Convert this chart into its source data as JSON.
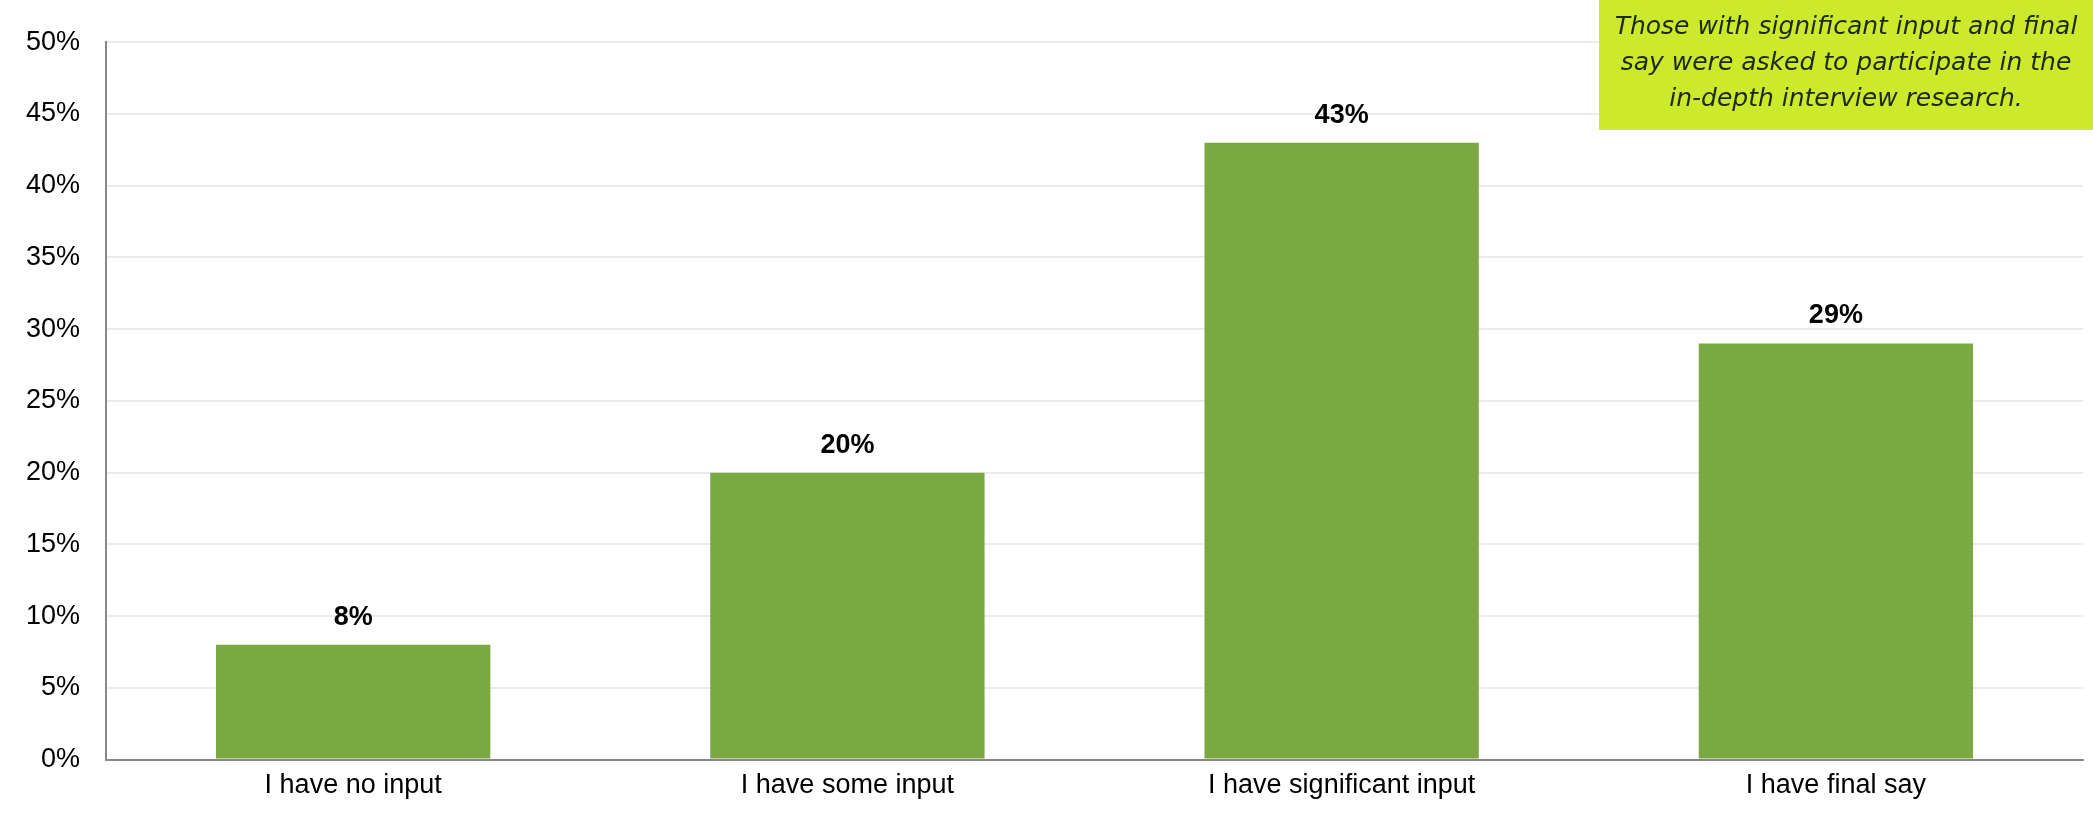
{
  "chart_data": {
    "type": "bar",
    "categories": [
      "I have no input",
      "I have some input",
      "I have significant input",
      "I have final say"
    ],
    "values": [
      8,
      20,
      43,
      29
    ],
    "color": "#7aa843",
    "value_labels": [
      "8%",
      "20%",
      "43%",
      "29%"
    ],
    "ylim": [
      0,
      50
    ],
    "yticks": [
      {
        "value": 0,
        "label": "0%"
      },
      {
        "value": 5,
        "label": "5%"
      },
      {
        "value": 10,
        "label": "10%"
      },
      {
        "value": 15,
        "label": "15%"
      },
      {
        "value": 20,
        "label": "20%"
      },
      {
        "value": 25,
        "label": "25%"
      },
      {
        "value": 30,
        "label": "30%"
      },
      {
        "value": 35,
        "label": "35%"
      },
      {
        "value": 40,
        "label": "40%"
      },
      {
        "value": 45,
        "label": "45%"
      },
      {
        "value": 50,
        "label": "50%"
      }
    ],
    "grid": "y",
    "annotations": [
      "Those with significant input and final say were asked to participate in the in-depth interview research."
    ]
  }
}
